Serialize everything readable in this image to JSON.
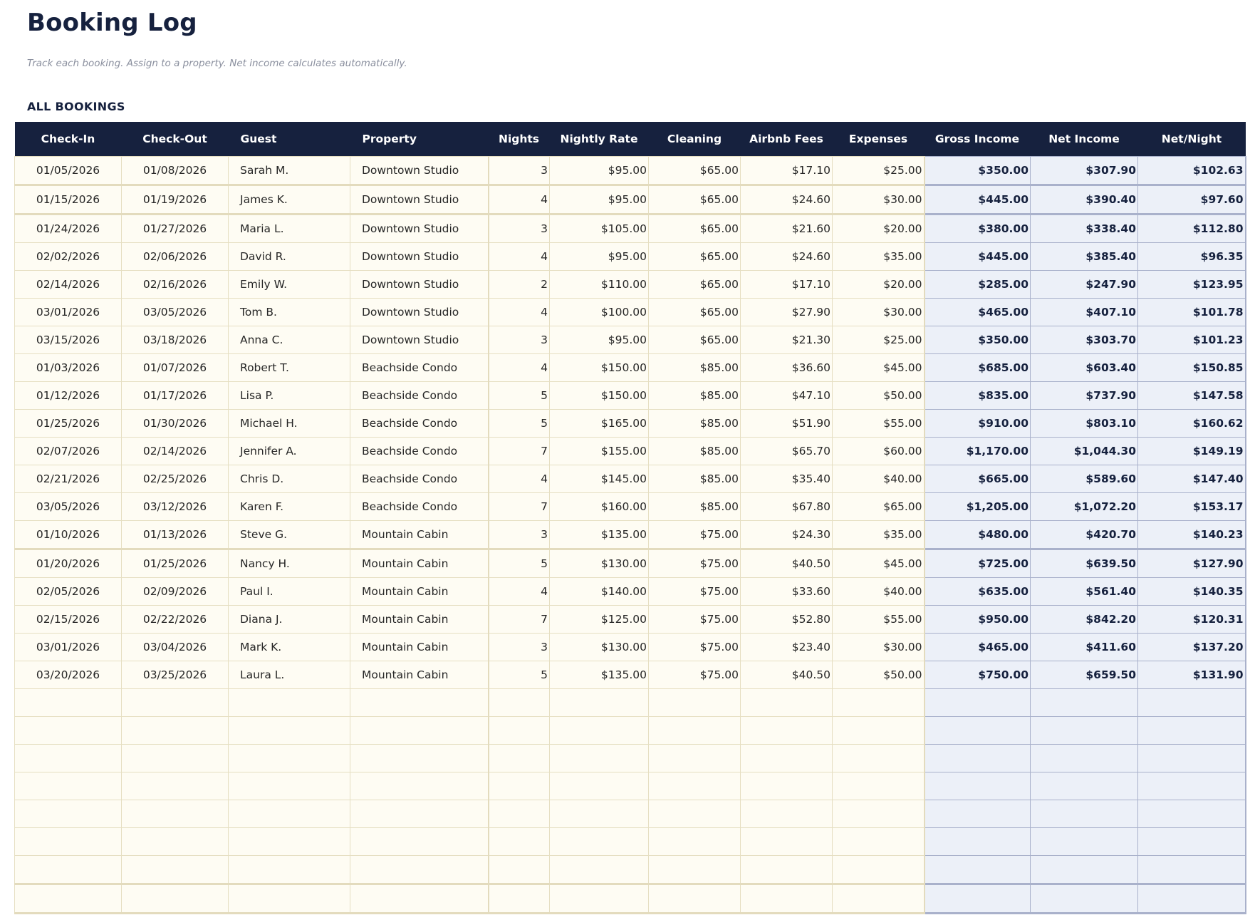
{
  "page": {
    "title": "Booking Log",
    "subtitle": "Track each booking. Assign to a property. Net income calculates automatically.",
    "section_label": "ALL BOOKINGS"
  },
  "colors": {
    "header_bg": "#16213e",
    "input_cell_bg": "#fefcf3",
    "input_border": "#e6dfc2",
    "calc_cell_bg": "#ecf0f8",
    "calc_border": "#a9b1cb",
    "title_text": "#16213e"
  },
  "table": {
    "columns": [
      "Check-In",
      "Check-Out",
      "Guest",
      "Property",
      "Nights",
      "Nightly Rate",
      "Cleaning",
      "Airbnb Fees",
      "Expenses",
      "Gross Income",
      "Net Income",
      "Net/Night"
    ],
    "rows": [
      [
        "01/05/2026",
        "01/08/2026",
        "Sarah M.",
        "Downtown Studio",
        "3",
        "$95.00",
        "$65.00",
        "$17.10",
        "$25.00",
        "$350.00",
        "$307.90",
        "$102.63"
      ],
      [
        "01/15/2026",
        "01/19/2026",
        "James K.",
        "Downtown Studio",
        "4",
        "$95.00",
        "$65.00",
        "$24.60",
        "$30.00",
        "$445.00",
        "$390.40",
        "$97.60"
      ],
      [
        "01/24/2026",
        "01/27/2026",
        "Maria L.",
        "Downtown Studio",
        "3",
        "$105.00",
        "$65.00",
        "$21.60",
        "$20.00",
        "$380.00",
        "$338.40",
        "$112.80"
      ],
      [
        "02/02/2026",
        "02/06/2026",
        "David R.",
        "Downtown Studio",
        "4",
        "$95.00",
        "$65.00",
        "$24.60",
        "$35.00",
        "$445.00",
        "$385.40",
        "$96.35"
      ],
      [
        "02/14/2026",
        "02/16/2026",
        "Emily W.",
        "Downtown Studio",
        "2",
        "$110.00",
        "$65.00",
        "$17.10",
        "$20.00",
        "$285.00",
        "$247.90",
        "$123.95"
      ],
      [
        "03/01/2026",
        "03/05/2026",
        "Tom B.",
        "Downtown Studio",
        "4",
        "$100.00",
        "$65.00",
        "$27.90",
        "$30.00",
        "$465.00",
        "$407.10",
        "$101.78"
      ],
      [
        "03/15/2026",
        "03/18/2026",
        "Anna C.",
        "Downtown Studio",
        "3",
        "$95.00",
        "$65.00",
        "$21.30",
        "$25.00",
        "$350.00",
        "$303.70",
        "$101.23"
      ],
      [
        "01/03/2026",
        "01/07/2026",
        "Robert T.",
        "Beachside Condo",
        "4",
        "$150.00",
        "$85.00",
        "$36.60",
        "$45.00",
        "$685.00",
        "$603.40",
        "$150.85"
      ],
      [
        "01/12/2026",
        "01/17/2026",
        "Lisa P.",
        "Beachside Condo",
        "5",
        "$150.00",
        "$85.00",
        "$47.10",
        "$50.00",
        "$835.00",
        "$737.90",
        "$147.58"
      ],
      [
        "01/25/2026",
        "01/30/2026",
        "Michael H.",
        "Beachside Condo",
        "5",
        "$165.00",
        "$85.00",
        "$51.90",
        "$55.00",
        "$910.00",
        "$803.10",
        "$160.62"
      ],
      [
        "02/07/2026",
        "02/14/2026",
        "Jennifer A.",
        "Beachside Condo",
        "7",
        "$155.00",
        "$85.00",
        "$65.70",
        "$60.00",
        "$1,170.00",
        "$1,044.30",
        "$149.19"
      ],
      [
        "02/21/2026",
        "02/25/2026",
        "Chris D.",
        "Beachside Condo",
        "4",
        "$145.00",
        "$85.00",
        "$35.40",
        "$40.00",
        "$665.00",
        "$589.60",
        "$147.40"
      ],
      [
        "03/05/2026",
        "03/12/2026",
        "Karen F.",
        "Beachside Condo",
        "7",
        "$160.00",
        "$85.00",
        "$67.80",
        "$65.00",
        "$1,205.00",
        "$1,072.20",
        "$153.17"
      ],
      [
        "01/10/2026",
        "01/13/2026",
        "Steve G.",
        "Mountain Cabin",
        "3",
        "$135.00",
        "$75.00",
        "$24.30",
        "$35.00",
        "$480.00",
        "$420.70",
        "$140.23"
      ],
      [
        "01/20/2026",
        "01/25/2026",
        "Nancy H.",
        "Mountain Cabin",
        "5",
        "$130.00",
        "$75.00",
        "$40.50",
        "$45.00",
        "$725.00",
        "$639.50",
        "$127.90"
      ],
      [
        "02/05/2026",
        "02/09/2026",
        "Paul I.",
        "Mountain Cabin",
        "4",
        "$140.00",
        "$75.00",
        "$33.60",
        "$40.00",
        "$635.00",
        "$561.40",
        "$140.35"
      ],
      [
        "02/15/2026",
        "02/22/2026",
        "Diana J.",
        "Mountain Cabin",
        "7",
        "$125.00",
        "$75.00",
        "$52.80",
        "$55.00",
        "$950.00",
        "$842.20",
        "$120.31"
      ],
      [
        "03/01/2026",
        "03/04/2026",
        "Mark K.",
        "Mountain Cabin",
        "3",
        "$130.00",
        "$75.00",
        "$23.40",
        "$30.00",
        "$465.00",
        "$411.60",
        "$137.20"
      ],
      [
        "03/20/2026",
        "03/25/2026",
        "Laura L.",
        "Mountain Cabin",
        "5",
        "$135.00",
        "$75.00",
        "$40.50",
        "$50.00",
        "$750.00",
        "$659.50",
        "$131.90"
      ]
    ],
    "empty_rows": 8
  }
}
